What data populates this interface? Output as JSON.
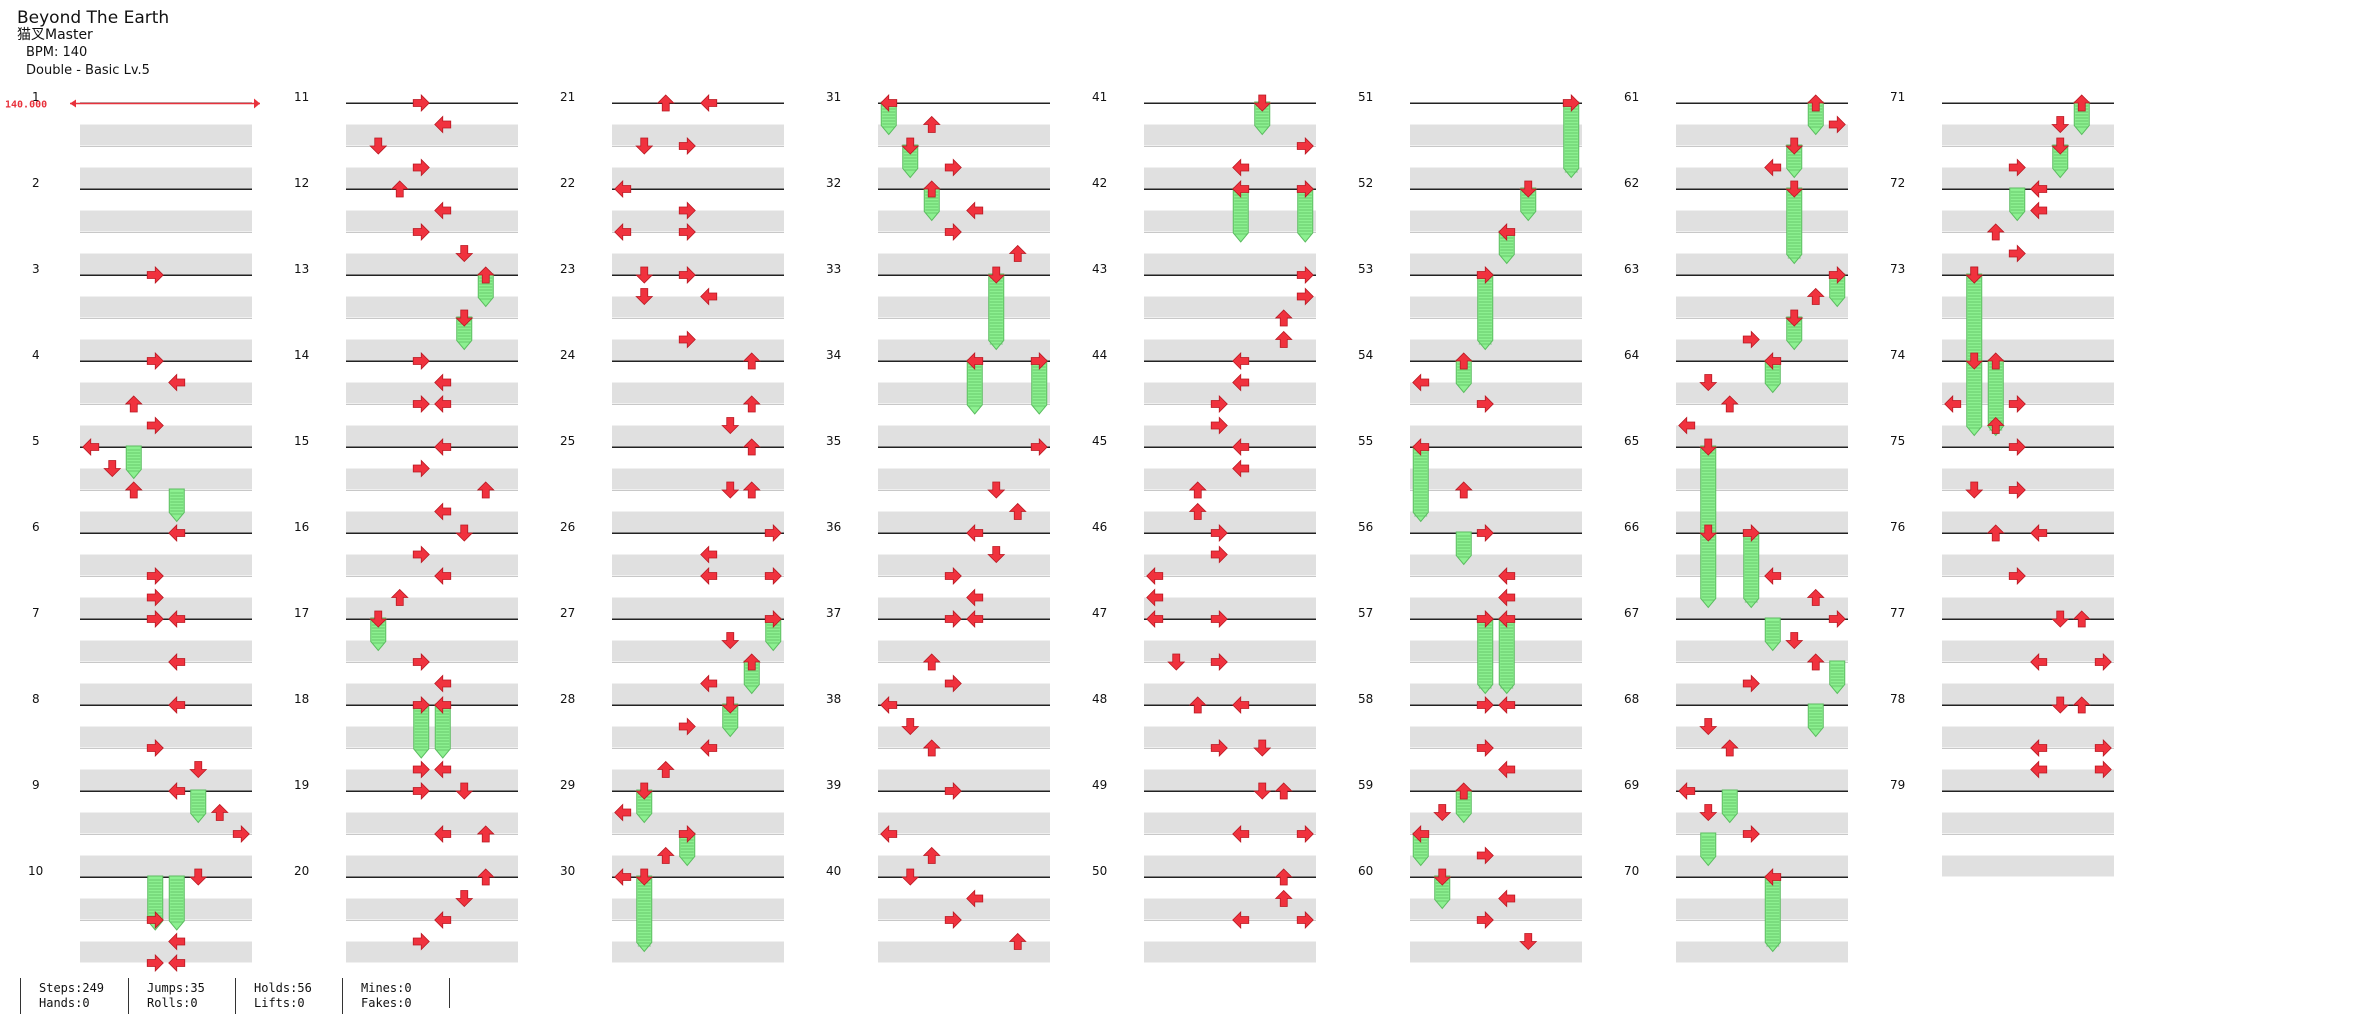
{
  "header": {
    "title": "Beyond The Earth",
    "artist": "猫叉Master",
    "bpm_text": "BPM: 140",
    "chart_text": "Double - Basic  Lv.5"
  },
  "bpm_marker": {
    "label": "140.000",
    "color": "#e8323c"
  },
  "stats": [
    {
      "line1": "Steps:249",
      "line2": "Hands:0"
    },
    {
      "line1": "Jumps:35",
      "line2": "Rolls:0"
    },
    {
      "line1": "Holds:56",
      "line2": "Lifts:0"
    },
    {
      "line1": "Mines:0",
      "line2": "Fakes:0"
    }
  ],
  "colors": {
    "arrow": "#f0323e",
    "hold": "#8cf090",
    "hold_border": "#5cbc60",
    "beat_bg": "#e0e0e0",
    "measure_line": "#222222"
  },
  "chart_data": {
    "type": "table",
    "measures_per_column": 10,
    "measure_labels": [
      1,
      2,
      3,
      4,
      5,
      6,
      7,
      8,
      9,
      10,
      11,
      12,
      13,
      14,
      15,
      16,
      17,
      18,
      19,
      20,
      21,
      22,
      23,
      24,
      25,
      26,
      27,
      28,
      29,
      30,
      31,
      32,
      33,
      34,
      35,
      36,
      37,
      38,
      39,
      40,
      41,
      42,
      43,
      44,
      45,
      46,
      47,
      48,
      49,
      50,
      51,
      52,
      53,
      54,
      55,
      56,
      57,
      58,
      59,
      60,
      61,
      62,
      63,
      64,
      65,
      66,
      67,
      68,
      69,
      70,
      71,
      72,
      73,
      74,
      75,
      76,
      77,
      78,
      79
    ],
    "lanes": [
      "left",
      "down",
      "up",
      "right",
      "left",
      "down",
      "up",
      "right"
    ],
    "notes": [
      [
        3,
        0,
        3
      ],
      [
        4,
        0,
        3
      ],
      [
        4.25,
        0,
        4
      ],
      [
        4.5,
        0,
        2
      ],
      [
        4.75,
        0,
        3
      ],
      [
        5,
        0,
        0
      ],
      [
        5.25,
        0,
        1
      ],
      [
        5.5,
        0,
        2
      ],
      [
        6,
        0,
        4
      ],
      [
        6.5,
        0,
        3
      ],
      [
        6.75,
        0,
        3
      ],
      [
        7,
        0,
        3
      ],
      [
        7,
        0,
        4
      ],
      [
        7.5,
        0,
        4
      ],
      [
        8,
        0,
        4
      ],
      [
        8.5,
        0,
        3
      ],
      [
        8.75,
        0,
        5
      ],
      [
        9,
        0,
        4
      ],
      [
        9.25,
        0,
        6
      ],
      [
        9.5,
        0,
        7
      ],
      [
        10,
        0,
        5
      ],
      [
        10.5,
        0,
        3
      ],
      [
        10.75,
        0,
        4
      ],
      [
        11,
        0,
        3
      ],
      [
        11,
        0,
        4
      ],
      [
        1,
        1,
        3
      ],
      [
        1.25,
        1,
        4
      ],
      [
        1.5,
        1,
        1
      ],
      [
        1.75,
        1,
        3
      ],
      [
        2,
        1,
        2
      ],
      [
        2.25,
        1,
        4
      ],
      [
        2.5,
        1,
        3
      ],
      [
        2.75,
        1,
        5
      ],
      [
        3,
        1,
        6
      ],
      [
        3.5,
        1,
        5
      ],
      [
        4,
        1,
        3
      ],
      [
        4.25,
        1,
        4
      ],
      [
        4.5,
        1,
        3
      ],
      [
        4.5,
        1,
        4
      ],
      [
        5,
        1,
        4
      ],
      [
        5.25,
        1,
        3
      ],
      [
        5.5,
        1,
        6
      ],
      [
        5.75,
        1,
        4
      ],
      [
        6,
        1,
        5
      ],
      [
        6.25,
        1,
        3
      ],
      [
        6.5,
        1,
        4
      ],
      [
        6.75,
        1,
        2
      ],
      [
        7,
        1,
        1
      ],
      [
        7.5,
        1,
        3
      ],
      [
        7.75,
        1,
        4
      ],
      [
        8,
        1,
        3
      ],
      [
        8,
        1,
        4
      ],
      [
        8.75,
        1,
        3
      ],
      [
        8.75,
        1,
        4
      ],
      [
        9,
        1,
        3
      ],
      [
        9,
        1,
        5
      ],
      [
        9.5,
        1,
        4
      ],
      [
        9.5,
        1,
        6
      ],
      [
        10,
        1,
        6
      ],
      [
        10.25,
        1,
        5
      ],
      [
        10.5,
        1,
        4
      ],
      [
        10.75,
        1,
        3
      ],
      [
        1,
        2,
        2
      ],
      [
        1,
        2,
        4
      ],
      [
        1.5,
        2,
        1
      ],
      [
        1.5,
        2,
        3
      ],
      [
        2,
        2,
        0
      ],
      [
        2.25,
        2,
        3
      ],
      [
        2.5,
        2,
        0
      ],
      [
        2.5,
        2,
        3
      ],
      [
        3,
        2,
        1
      ],
      [
        3,
        2,
        3
      ],
      [
        3.25,
        2,
        1
      ],
      [
        3.25,
        2,
        4
      ],
      [
        3.75,
        2,
        3
      ],
      [
        4,
        2,
        6
      ],
      [
        4.5,
        2,
        6
      ],
      [
        4.75,
        2,
        5
      ],
      [
        5,
        2,
        6
      ],
      [
        5.5,
        2,
        5
      ],
      [
        5.5,
        2,
        6
      ],
      [
        6,
        2,
        7
      ],
      [
        6.25,
        2,
        4
      ],
      [
        6.5,
        2,
        4
      ],
      [
        6.5,
        2,
        7
      ],
      [
        7,
        2,
        7
      ],
      [
        7.25,
        2,
        5
      ],
      [
        7.5,
        2,
        6
      ],
      [
        7.75,
        2,
        4
      ],
      [
        8,
        2,
        5
      ],
      [
        8.25,
        2,
        3
      ],
      [
        8.5,
        2,
        4
      ],
      [
        8.75,
        2,
        2
      ],
      [
        9,
        2,
        1
      ],
      [
        9.25,
        2,
        0
      ],
      [
        9.5,
        2,
        3
      ],
      [
        9.75,
        2,
        2
      ],
      [
        10,
        2,
        0
      ],
      [
        10,
        2,
        1
      ],
      [
        1,
        3,
        0
      ],
      [
        1.25,
        3,
        2
      ],
      [
        1.5,
        3,
        1
      ],
      [
        1.75,
        3,
        3
      ],
      [
        2,
        3,
        2
      ],
      [
        2.25,
        3,
        4
      ],
      [
        2.5,
        3,
        3
      ],
      [
        2.75,
        3,
        6
      ],
      [
        3,
        3,
        5
      ],
      [
        4,
        3,
        4
      ],
      [
        4,
        3,
        7
      ],
      [
        5,
        3,
        7
      ],
      [
        5.5,
        3,
        5
      ],
      [
        5.75,
        3,
        6
      ],
      [
        6,
        3,
        4
      ],
      [
        6.25,
        3,
        5
      ],
      [
        6.5,
        3,
        3
      ],
      [
        6.75,
        3,
        4
      ],
      [
        7,
        3,
        3
      ],
      [
        7,
        3,
        4
      ],
      [
        7.5,
        3,
        2
      ],
      [
        7.75,
        3,
        3
      ],
      [
        8,
        3,
        0
      ],
      [
        8.25,
        3,
        1
      ],
      [
        8.5,
        3,
        2
      ],
      [
        9,
        3,
        3
      ],
      [
        9.5,
        3,
        0
      ],
      [
        9.75,
        3,
        2
      ],
      [
        10,
        3,
        1
      ],
      [
        10.25,
        3,
        4
      ],
      [
        10.5,
        3,
        3
      ],
      [
        10.75,
        3,
        6
      ],
      [
        1,
        4,
        5
      ],
      [
        1.5,
        4,
        7
      ],
      [
        1.75,
        4,
        4
      ],
      [
        2,
        4,
        4
      ],
      [
        2,
        4,
        7
      ],
      [
        3,
        4,
        7
      ],
      [
        3.25,
        4,
        7
      ],
      [
        3.5,
        4,
        6
      ],
      [
        3.75,
        4,
        6
      ],
      [
        4,
        4,
        4
      ],
      [
        4.25,
        4,
        4
      ],
      [
        4.5,
        4,
        3
      ],
      [
        4.75,
        4,
        3
      ],
      [
        5,
        4,
        4
      ],
      [
        5.25,
        4,
        4
      ],
      [
        5.5,
        4,
        2
      ],
      [
        5.75,
        4,
        2
      ],
      [
        6,
        4,
        3
      ],
      [
        6.25,
        4,
        3
      ],
      [
        6.5,
        4,
        0
      ],
      [
        6.75,
        4,
        0
      ],
      [
        7,
        4,
        0
      ],
      [
        7,
        4,
        3
      ],
      [
        7.5,
        4,
        1
      ],
      [
        7.5,
        4,
        3
      ],
      [
        8,
        4,
        2
      ],
      [
        8,
        4,
        4
      ],
      [
        8.5,
        4,
        3
      ],
      [
        8.5,
        4,
        5
      ],
      [
        9,
        4,
        5
      ],
      [
        9,
        4,
        6
      ],
      [
        9.5,
        4,
        4
      ],
      [
        9.5,
        4,
        7
      ],
      [
        10,
        4,
        6
      ],
      [
        10.25,
        4,
        6
      ],
      [
        10.5,
        4,
        4
      ],
      [
        10.5,
        4,
        7
      ],
      [
        1,
        5,
        7
      ],
      [
        2,
        5,
        5
      ],
      [
        2.5,
        5,
        4
      ],
      [
        3,
        5,
        3
      ],
      [
        4,
        5,
        2
      ],
      [
        4.25,
        5,
        0
      ],
      [
        4.5,
        5,
        3
      ],
      [
        5,
        5,
        0
      ],
      [
        5.5,
        5,
        2
      ],
      [
        6,
        5,
        3
      ],
      [
        6.5,
        5,
        4
      ],
      [
        6.75,
        5,
        4
      ],
      [
        7,
        5,
        3
      ],
      [
        7,
        5,
        4
      ],
      [
        8,
        5,
        3
      ],
      [
        8,
        5,
        4
      ],
      [
        8.5,
        5,
        3
      ],
      [
        8.75,
        5,
        4
      ],
      [
        9,
        5,
        2
      ],
      [
        9.25,
        5,
        1
      ],
      [
        9.5,
        5,
        0
      ],
      [
        9.75,
        5,
        3
      ],
      [
        10,
        5,
        1
      ],
      [
        10.25,
        5,
        4
      ],
      [
        10.5,
        5,
        3
      ],
      [
        10.75,
        5,
        5
      ],
      [
        1,
        6,
        6
      ],
      [
        1.25,
        6,
        7
      ],
      [
        1.5,
        6,
        5
      ],
      [
        1.75,
        6,
        4
      ],
      [
        2,
        6,
        5
      ],
      [
        3,
        6,
        7
      ],
      [
        3.25,
        6,
        6
      ],
      [
        3.5,
        6,
        5
      ],
      [
        3.75,
        6,
        3
      ],
      [
        4,
        6,
        4
      ],
      [
        4.25,
        6,
        1
      ],
      [
        4.5,
        6,
        2
      ],
      [
        4.75,
        6,
        0
      ],
      [
        5,
        6,
        1
      ],
      [
        6,
        6,
        1
      ],
      [
        6,
        6,
        3
      ],
      [
        6.5,
        6,
        4
      ],
      [
        6.75,
        6,
        6
      ],
      [
        7,
        6,
        7
      ],
      [
        7.25,
        6,
        5
      ],
      [
        7.5,
        6,
        6
      ],
      [
        7.75,
        6,
        3
      ],
      [
        8.25,
        6,
        1
      ],
      [
        8.5,
        6,
        2
      ],
      [
        9,
        6,
        0
      ],
      [
        9.25,
        6,
        1
      ],
      [
        9.5,
        6,
        3
      ],
      [
        10,
        6,
        4
      ],
      [
        1,
        7,
        6
      ],
      [
        1.25,
        7,
        5
      ],
      [
        1.5,
        7,
        5
      ],
      [
        1.75,
        7,
        3
      ],
      [
        2,
        7,
        4
      ],
      [
        2.25,
        7,
        4
      ],
      [
        2.5,
        7,
        2
      ],
      [
        2.75,
        7,
        3
      ],
      [
        3,
        7,
        1
      ],
      [
        3,
        7,
        1
      ],
      [
        4,
        7,
        1
      ],
      [
        4,
        7,
        2
      ],
      [
        4.5,
        7,
        0
      ],
      [
        4.5,
        7,
        3
      ],
      [
        4.75,
        7,
        2
      ],
      [
        5,
        7,
        3
      ],
      [
        5.5,
        7,
        1
      ],
      [
        5.5,
        7,
        3
      ],
      [
        6,
        7,
        2
      ],
      [
        6,
        7,
        4
      ],
      [
        6.5,
        7,
        3
      ],
      [
        7,
        7,
        5
      ],
      [
        7,
        7,
        6
      ],
      [
        7.5,
        7,
        4
      ],
      [
        7.5,
        7,
        7
      ],
      [
        8,
        7,
        5
      ],
      [
        8,
        7,
        6
      ],
      [
        8.5,
        7,
        4
      ],
      [
        8.5,
        7,
        7
      ],
      [
        8.75,
        7,
        4
      ],
      [
        8.75,
        7,
        7
      ]
    ],
    "holds": [
      [
        5,
        5.25,
        0,
        2
      ],
      [
        5.5,
        5.75,
        0,
        4
      ],
      [
        9,
        9.25,
        0,
        5
      ],
      [
        10,
        10.5,
        0,
        3
      ],
      [
        10,
        10.5,
        0,
        4
      ],
      [
        3,
        3.25,
        1,
        6
      ],
      [
        3.5,
        3.75,
        1,
        5
      ],
      [
        7,
        7.25,
        1,
        1
      ],
      [
        8,
        8.5,
        1,
        3
      ],
      [
        8,
        8.5,
        1,
        4
      ],
      [
        7,
        7.25,
        2,
        7
      ],
      [
        7.5,
        7.75,
        2,
        6
      ],
      [
        8,
        8.25,
        2,
        5
      ],
      [
        9,
        9.25,
        2,
        1
      ],
      [
        9.5,
        9.75,
        2,
        3
      ],
      [
        10,
        10.75,
        2,
        1
      ],
      [
        1,
        1.25,
        3,
        0
      ],
      [
        1.5,
        1.75,
        3,
        1
      ],
      [
        2,
        2.25,
        3,
        2
      ],
      [
        3,
        3.75,
        3,
        5
      ],
      [
        4,
        4.5,
        3,
        4
      ],
      [
        4,
        4.5,
        3,
        7
      ],
      [
        1,
        1.25,
        4,
        5
      ],
      [
        2,
        2.5,
        4,
        4
      ],
      [
        2,
        2.5,
        4,
        7
      ],
      [
        1,
        1.75,
        5,
        7
      ],
      [
        2,
        2.25,
        5,
        5
      ],
      [
        2.5,
        2.75,
        5,
        4
      ],
      [
        3,
        3.75,
        5,
        3
      ],
      [
        4,
        4.25,
        5,
        2
      ],
      [
        5,
        5.75,
        5,
        0
      ],
      [
        6,
        6.25,
        5,
        2
      ],
      [
        7,
        7.75,
        5,
        3
      ],
      [
        7,
        7.75,
        5,
        4
      ],
      [
        9,
        9.25,
        5,
        2
      ],
      [
        9.5,
        9.75,
        5,
        0
      ],
      [
        10,
        10.25,
        5,
        1
      ],
      [
        1,
        1.25,
        6,
        6
      ],
      [
        1.5,
        1.75,
        6,
        5
      ],
      [
        2,
        2.75,
        6,
        5
      ],
      [
        3,
        3.25,
        6,
        7
      ],
      [
        3.5,
        3.75,
        6,
        5
      ],
      [
        4,
        4.25,
        6,
        4
      ],
      [
        5,
        6.75,
        6,
        1
      ],
      [
        6,
        6.75,
        6,
        3
      ],
      [
        7,
        7.25,
        6,
        4
      ],
      [
        7.5,
        7.75,
        6,
        7
      ],
      [
        8,
        8.25,
        6,
        6
      ],
      [
        9,
        9.25,
        6,
        2
      ],
      [
        9.5,
        9.75,
        6,
        1
      ],
      [
        10,
        10.75,
        6,
        4
      ],
      [
        1,
        1.25,
        7,
        6
      ],
      [
        1.5,
        1.75,
        7,
        5
      ],
      [
        2,
        2.25,
        7,
        3
      ],
      [
        3,
        4.75,
        7,
        1
      ],
      [
        4,
        4.75,
        7,
        2
      ]
    ]
  }
}
